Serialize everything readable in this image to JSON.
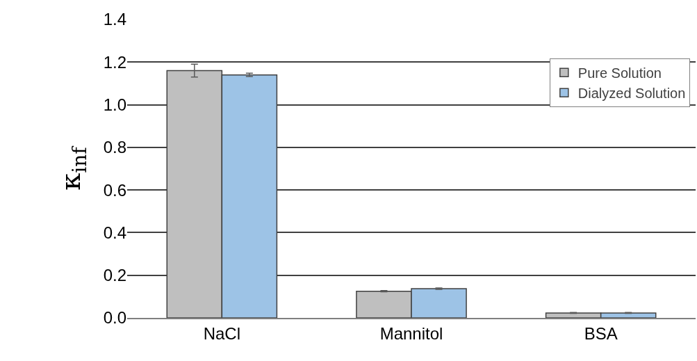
{
  "chart_data": {
    "type": "bar",
    "ylabel": "κ$_{inf}$",
    "categories": [
      "NaCl",
      "Mannitol",
      "BSA"
    ],
    "series": [
      {
        "name": "Pure Solution",
        "color": "#bfbfbf",
        "values": [
          1.16,
          0.125,
          0.023
        ],
        "errors": [
          0.03,
          0.003,
          0.002
        ]
      },
      {
        "name": "Dialyzed Solution",
        "color": "#9dc3e6",
        "values": [
          1.14,
          0.137,
          0.023
        ],
        "errors": [
          0.008,
          0.003,
          0.002
        ]
      }
    ],
    "ylim": [
      0,
      1.4
    ],
    "yticks": [
      {
        "value": 0,
        "label": "0.0"
      },
      0.2,
      0.4,
      0.6,
      0.8,
      {
        "value": 1,
        "label": "1.0"
      },
      1.2,
      1.4
    ],
    "grid": "y",
    "legend": "top right"
  }
}
